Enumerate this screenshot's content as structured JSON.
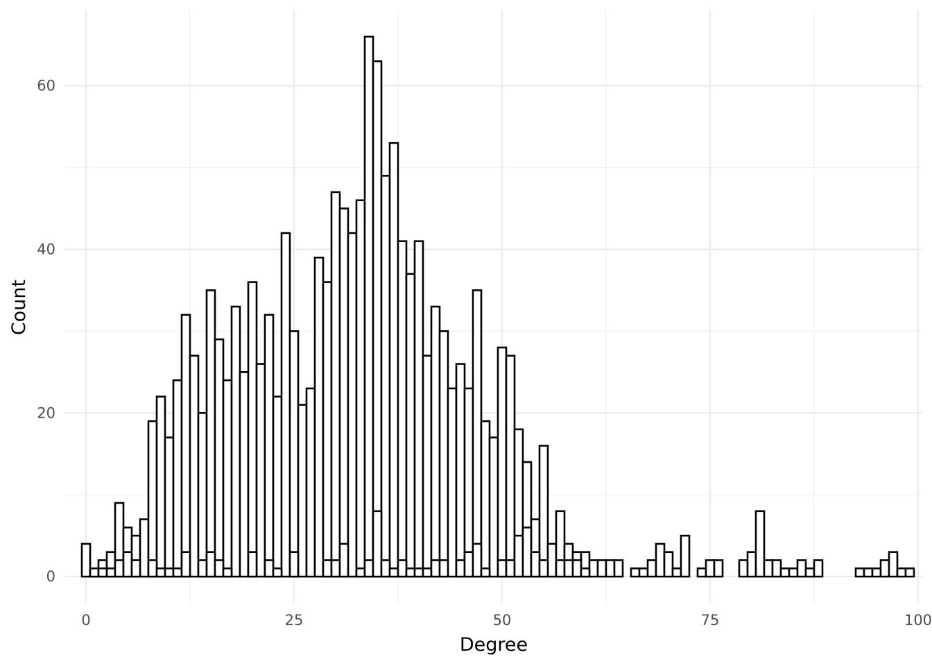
{
  "chart_data": {
    "type": "bar",
    "subtype": "histogram",
    "xlabel": "Degree",
    "ylabel": "Count",
    "xlim": [
      -2.5,
      100.5
    ],
    "ylim": [
      -3.3,
      69.3
    ],
    "x_ticks": [
      0,
      25,
      50,
      75,
      100
    ],
    "x_tick_labels": [
      "0",
      "25",
      "50",
      "75",
      "100"
    ],
    "y_ticks": [
      0,
      20,
      40,
      60
    ],
    "y_tick_labels": [
      "0",
      "20",
      "40",
      "60"
    ],
    "grid": true,
    "bin_width": 1,
    "bar_fill": "#ffffff",
    "bar_outline": "#000000",
    "layers": [
      {
        "bins": [
          {
            "x": 0,
            "count": 4
          },
          {
            "x": 1,
            "count": 1
          },
          {
            "x": 2,
            "count": 2
          },
          {
            "x": 3,
            "count": 3
          },
          {
            "x": 4,
            "count": 9
          },
          {
            "x": 5,
            "count": 6
          },
          {
            "x": 6,
            "count": 5
          },
          {
            "x": 7,
            "count": 7
          },
          {
            "x": 8,
            "count": 19
          },
          {
            "x": 9,
            "count": 22
          },
          {
            "x": 10,
            "count": 17
          },
          {
            "x": 11,
            "count": 24
          },
          {
            "x": 12,
            "count": 32
          },
          {
            "x": 13,
            "count": 27
          },
          {
            "x": 14,
            "count": 20
          },
          {
            "x": 15,
            "count": 35
          },
          {
            "x": 16,
            "count": 29
          },
          {
            "x": 17,
            "count": 24
          },
          {
            "x": 18,
            "count": 33
          },
          {
            "x": 19,
            "count": 25
          },
          {
            "x": 20,
            "count": 36
          },
          {
            "x": 21,
            "count": 26
          },
          {
            "x": 22,
            "count": 32
          },
          {
            "x": 23,
            "count": 22
          },
          {
            "x": 24,
            "count": 42
          },
          {
            "x": 25,
            "count": 30
          },
          {
            "x": 26,
            "count": 21
          },
          {
            "x": 27,
            "count": 23
          },
          {
            "x": 28,
            "count": 39
          },
          {
            "x": 29,
            "count": 36
          },
          {
            "x": 30,
            "count": 47
          },
          {
            "x": 31,
            "count": 45
          },
          {
            "x": 32,
            "count": 42
          },
          {
            "x": 33,
            "count": 46
          },
          {
            "x": 34,
            "count": 66
          },
          {
            "x": 35,
            "count": 63
          },
          {
            "x": 36,
            "count": 49
          },
          {
            "x": 37,
            "count": 53
          },
          {
            "x": 38,
            "count": 41
          },
          {
            "x": 39,
            "count": 37
          },
          {
            "x": 40,
            "count": 41
          },
          {
            "x": 41,
            "count": 27
          },
          {
            "x": 42,
            "count": 33
          },
          {
            "x": 43,
            "count": 30
          },
          {
            "x": 44,
            "count": 23
          },
          {
            "x": 45,
            "count": 26
          },
          {
            "x": 46,
            "count": 23
          },
          {
            "x": 47,
            "count": 35
          },
          {
            "x": 48,
            "count": 19
          },
          {
            "x": 49,
            "count": 17
          },
          {
            "x": 50,
            "count": 28
          },
          {
            "x": 51,
            "count": 27
          },
          {
            "x": 52,
            "count": 18
          },
          {
            "x": 53,
            "count": 14
          },
          {
            "x": 54,
            "count": 7
          },
          {
            "x": 55,
            "count": 16
          },
          {
            "x": 56,
            "count": 4
          },
          {
            "x": 57,
            "count": 8
          },
          {
            "x": 58,
            "count": 4
          },
          {
            "x": 59,
            "count": 3
          },
          {
            "x": 60,
            "count": 3
          },
          {
            "x": 61,
            "count": 2
          },
          {
            "x": 62,
            "count": 2
          },
          {
            "x": 63,
            "count": 2
          },
          {
            "x": 64,
            "count": 2
          },
          {
            "x": 66,
            "count": 1
          },
          {
            "x": 67,
            "count": 1
          },
          {
            "x": 68,
            "count": 2
          },
          {
            "x": 69,
            "count": 4
          },
          {
            "x": 70,
            "count": 3
          },
          {
            "x": 71,
            "count": 1
          },
          {
            "x": 72,
            "count": 5
          },
          {
            "x": 74,
            "count": 1
          },
          {
            "x": 75,
            "count": 2
          },
          {
            "x": 76,
            "count": 2
          },
          {
            "x": 79,
            "count": 2
          },
          {
            "x": 80,
            "count": 3
          },
          {
            "x": 81,
            "count": 8
          },
          {
            "x": 82,
            "count": 2
          },
          {
            "x": 83,
            "count": 2
          },
          {
            "x": 84,
            "count": 1
          },
          {
            "x": 85,
            "count": 1
          },
          {
            "x": 86,
            "count": 2
          },
          {
            "x": 87,
            "count": 1
          },
          {
            "x": 88,
            "count": 2
          },
          {
            "x": 93,
            "count": 1
          },
          {
            "x": 94,
            "count": 1
          },
          {
            "x": 95,
            "count": 1
          },
          {
            "x": 96,
            "count": 2
          },
          {
            "x": 97,
            "count": 3
          },
          {
            "x": 98,
            "count": 1
          },
          {
            "x": 99,
            "count": 1
          }
        ]
      },
      {
        "bins": [
          {
            "x": 1,
            "count": 1
          },
          {
            "x": 2,
            "count": 1
          },
          {
            "x": 3,
            "count": 1
          },
          {
            "x": 4,
            "count": 2
          },
          {
            "x": 5,
            "count": 3
          },
          {
            "x": 6,
            "count": 2
          },
          {
            "x": 8,
            "count": 2
          },
          {
            "x": 9,
            "count": 1
          },
          {
            "x": 10,
            "count": 1
          },
          {
            "x": 11,
            "count": 1
          },
          {
            "x": 12,
            "count": 3
          },
          {
            "x": 14,
            "count": 2
          },
          {
            "x": 15,
            "count": 3
          },
          {
            "x": 16,
            "count": 2
          },
          {
            "x": 17,
            "count": 1
          },
          {
            "x": 20,
            "count": 3
          },
          {
            "x": 22,
            "count": 2
          },
          {
            "x": 23,
            "count": 1
          },
          {
            "x": 25,
            "count": 3
          },
          {
            "x": 29,
            "count": 2
          },
          {
            "x": 30,
            "count": 2
          },
          {
            "x": 31,
            "count": 4
          },
          {
            "x": 33,
            "count": 1
          },
          {
            "x": 34,
            "count": 2
          },
          {
            "x": 35,
            "count": 8
          },
          {
            "x": 36,
            "count": 2
          },
          {
            "x": 37,
            "count": 1
          },
          {
            "x": 38,
            "count": 2
          },
          {
            "x": 39,
            "count": 1
          },
          {
            "x": 40,
            "count": 1
          },
          {
            "x": 41,
            "count": 1
          },
          {
            "x": 42,
            "count": 2
          },
          {
            "x": 43,
            "count": 2
          },
          {
            "x": 45,
            "count": 2
          },
          {
            "x": 46,
            "count": 3
          },
          {
            "x": 47,
            "count": 4
          },
          {
            "x": 48,
            "count": 1
          },
          {
            "x": 50,
            "count": 2
          },
          {
            "x": 51,
            "count": 2
          },
          {
            "x": 52,
            "count": 5
          },
          {
            "x": 53,
            "count": 6
          },
          {
            "x": 54,
            "count": 3
          },
          {
            "x": 55,
            "count": 2
          },
          {
            "x": 57,
            "count": 2
          },
          {
            "x": 58,
            "count": 2
          },
          {
            "x": 59,
            "count": 2
          },
          {
            "x": 60,
            "count": 1
          }
        ]
      }
    ]
  }
}
